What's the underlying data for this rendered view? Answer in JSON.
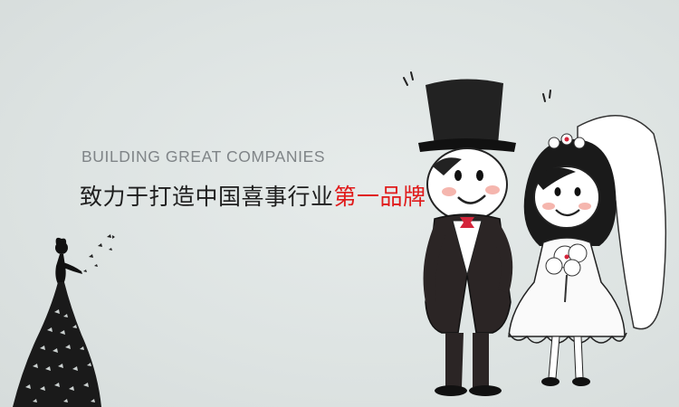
{
  "banner": {
    "tagline_en": "BUILDING GREAT COMPANIES",
    "tagline_cn_main": "致力于打造中国喜事行业",
    "tagline_cn_accent": "第一品牌"
  },
  "colors": {
    "background": "#dfe5e4",
    "english_text": "#7f8487",
    "chinese_text": "#1e1e1e",
    "accent": "#e01a1a"
  },
  "illustrations": {
    "left": "bride-butterfly-silhouette",
    "right": "cartoon-bride-and-groom"
  }
}
